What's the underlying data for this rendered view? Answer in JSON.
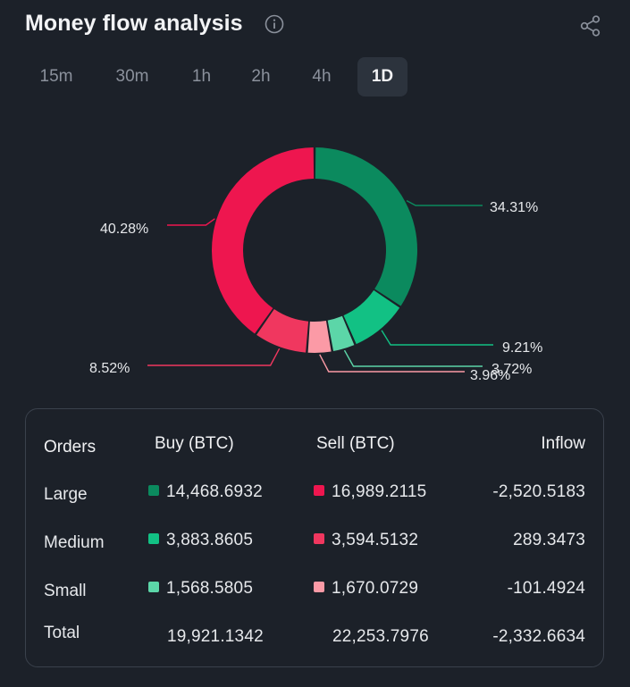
{
  "header": {
    "title": "Money flow analysis"
  },
  "tabs": [
    {
      "label": "15m",
      "active": false
    },
    {
      "label": "30m",
      "active": false
    },
    {
      "label": "1h",
      "active": false
    },
    {
      "label": "2h",
      "active": false
    },
    {
      "label": "4h",
      "active": false
    },
    {
      "label": "1D",
      "active": true
    }
  ],
  "colors": {
    "large_buy": "#0b8a5e",
    "medium_buy": "#12c184",
    "small_buy": "#5cd6a8",
    "large_sell": "#ee164f",
    "medium_sell": "#f0375f",
    "small_sell": "#fb9aa6"
  },
  "chart_data": {
    "type": "pie",
    "donut": true,
    "slices": [
      {
        "name": "Large Buy",
        "value": 34.31,
        "label": "34.31%",
        "color": "#0b8a5e"
      },
      {
        "name": "Medium Buy",
        "value": 9.21,
        "label": "9.21%",
        "color": "#12c184"
      },
      {
        "name": "Small Buy",
        "value": 3.72,
        "label": "3.72%",
        "color": "#5cd6a8"
      },
      {
        "name": "Small Sell",
        "value": 3.96,
        "label": "3.96%",
        "color": "#fb9aa6"
      },
      {
        "name": "Medium Sell",
        "value": 8.52,
        "label": "8.52%",
        "color": "#f0375f"
      },
      {
        "name": "Large Sell",
        "value": 40.28,
        "label": "40.28%",
        "color": "#ee164f"
      }
    ]
  },
  "table": {
    "headers": {
      "orders": "Orders",
      "buy": "Buy (BTC)",
      "sell": "Sell (BTC)",
      "inflow": "Inflow"
    },
    "rows": [
      {
        "label": "Large",
        "buy": "14,468.6932",
        "sell": "16,989.2115",
        "inflow": "-2,520.5183"
      },
      {
        "label": "Medium",
        "buy": "3,883.8605",
        "sell": "3,594.5132",
        "inflow": "289.3473"
      },
      {
        "label": "Small",
        "buy": "1,568.5805",
        "sell": "1,670.0729",
        "inflow": "-101.4924"
      }
    ],
    "total": {
      "label": "Total",
      "buy": "19,921.1342",
      "sell": "22,253.7976",
      "inflow": "-2,332.6634"
    }
  }
}
